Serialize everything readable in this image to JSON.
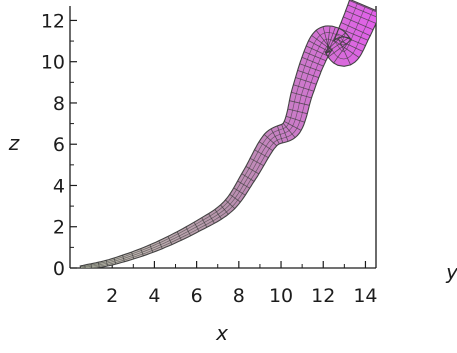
{
  "chart_data": {
    "type": "line",
    "title": "",
    "xlabel": "x",
    "ylabel": "z",
    "third_axis_label": "y",
    "xlim": [
      0,
      14.5
    ],
    "ylim": [
      0,
      12.7
    ],
    "x_ticks": [
      "2",
      "4",
      "6",
      "8",
      "10",
      "12",
      "14"
    ],
    "y_ticks": [
      "0",
      "2",
      "4",
      "6",
      "8",
      "10",
      "12"
    ],
    "grid": false,
    "legend": "none",
    "series": [
      {
        "x": [
          0.5,
          2,
          4,
          6,
          7.5,
          8.5,
          9.5,
          10.5,
          11,
          11.5,
          12,
          12.5,
          13,
          13.5,
          14
        ],
        "y": [
          0,
          0.3,
          1.0,
          2.0,
          3.0,
          4.5,
          6.2,
          6.8,
          8.5,
          10.0,
          11.0,
          11.0,
          10.5,
          11.5,
          12.7
        ]
      }
    ],
    "colors": {
      "axis": "#1c1c1c",
      "tube_start": "#bdc6ac",
      "tube_end": "#e157e9",
      "mesh": "#3a3a3a"
    }
  }
}
